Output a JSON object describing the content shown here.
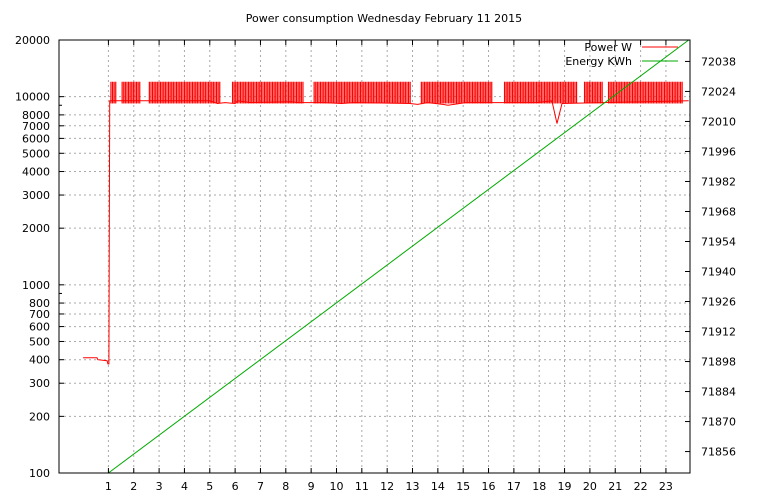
{
  "chart_data": {
    "type": "line",
    "title": "Power consumption Wednesday February 11 2015",
    "xlabel": "",
    "ylabel": "",
    "x_ticks": [
      "1",
      "2",
      "3",
      "4",
      "5",
      "6",
      "7",
      "8",
      "9",
      "10",
      "11",
      "12",
      "13",
      "14",
      "15",
      "16",
      "17",
      "18",
      "19",
      "20",
      "21",
      "22",
      "23"
    ],
    "xlim": [
      -0.95,
      23.95
    ],
    "y_scale": "log",
    "ylim": [
      100,
      20000
    ],
    "y_ticks": [
      100,
      200,
      300,
      400,
      500,
      600,
      700,
      800,
      1000,
      2000,
      3000,
      4000,
      5000,
      6000,
      7000,
      8000,
      10000,
      20000
    ],
    "y2lim": [
      71846,
      72048
    ],
    "y2_ticks": [
      71856,
      71870,
      71884,
      71898,
      71912,
      71926,
      71940,
      71954,
      71968,
      71982,
      71996,
      72010,
      72024,
      72038
    ],
    "grid": true,
    "legend_position": "top-right",
    "series": [
      {
        "name": "Power W",
        "color": "#ff0000",
        "axis": "y",
        "x": [
          0.0,
          0.55,
          0.58,
          0.95,
          0.98,
          1.02,
          1.05,
          1.1,
          5.0,
          5.3,
          5.6,
          6.0,
          6.1,
          6.6,
          8.2,
          8.5,
          9.5,
          10.2,
          10.7,
          12.9,
          13.2,
          13.6,
          14.2,
          14.4,
          15.1,
          16.6,
          17.9,
          18.5,
          18.7,
          18.9,
          23.9
        ],
        "values": [
          410,
          410,
          400,
          395,
          380,
          380,
          9500,
          9500,
          9500,
          9200,
          9300,
          9200,
          9500,
          9300,
          9400,
          9300,
          9300,
          9200,
          9300,
          9200,
          9100,
          9300,
          9100,
          9000,
          9300,
          9300,
          9300,
          9500,
          7200,
          9200,
          9500
        ],
        "band": {
          "x_start": 1.1,
          "x_end": 23.9,
          "low": 9200,
          "high": 12000
        }
      },
      {
        "name": "Energy KWh",
        "color": "#00aa00",
        "axis": "y2",
        "x": [
          1.0,
          23.9
        ],
        "values": [
          71846,
          72048
        ]
      }
    ]
  }
}
